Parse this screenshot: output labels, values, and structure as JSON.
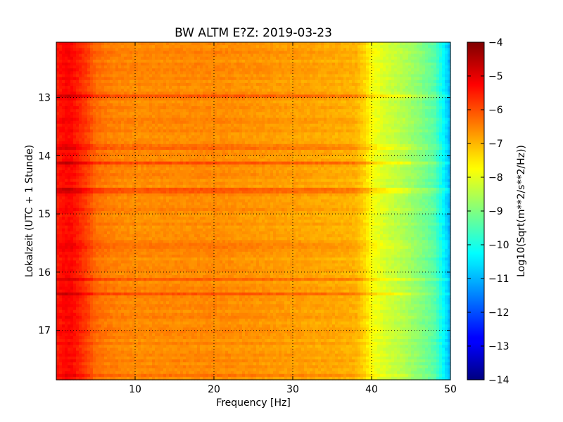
{
  "chart_data": {
    "type": "heatmap",
    "title": "BW ALTM E?Z: 2019-03-23",
    "xlabel": "Frequency [Hz]",
    "ylabel": "Lokalzeit (UTC + 1 Stunde)",
    "xlim": [
      0,
      50
    ],
    "ylim": [
      12.05,
      17.85
    ],
    "y_inverted": true,
    "x_ticks": [
      10,
      20,
      30,
      40,
      50
    ],
    "x_tick_labels": [
      "10",
      "20",
      "30",
      "40",
      "50"
    ],
    "y_ticks": [
      13,
      14,
      15,
      16,
      17
    ],
    "y_tick_labels": [
      "13",
      "14",
      "15",
      "16",
      "17"
    ],
    "grid": true,
    "colormap": "jet",
    "colorbar": {
      "label": "Log10(Sqrt(m**2/s**2/Hz))",
      "range": [
        -14,
        -4
      ],
      "ticks": [
        -4,
        -5,
        -6,
        -7,
        -8,
        -9,
        -10,
        -11,
        -12,
        -13,
        -14
      ],
      "tick_labels": [
        "−4",
        "−5",
        "−6",
        "−7",
        "−8",
        "−9",
        "−10",
        "−11",
        "−12",
        "−13",
        "−14"
      ]
    },
    "spectrum_profile": {
      "frequency_hz": [
        0,
        1,
        2,
        3,
        4,
        5,
        7,
        10,
        15,
        20,
        25,
        30,
        35,
        38,
        39,
        40,
        41,
        42,
        44,
        46,
        48,
        49,
        50
      ],
      "log10_amplitude": [
        -5.5,
        -5.3,
        -5.3,
        -5.6,
        -5.9,
        -6.3,
        -6.5,
        -6.6,
        -6.6,
        -6.6,
        -6.7,
        -6.8,
        -6.9,
        -7.0,
        -7.3,
        -7.8,
        -8.0,
        -8.2,
        -8.5,
        -8.9,
        -9.4,
        -10.2,
        -11.0
      ]
    },
    "bands": [
      {
        "time_hour": 12.97,
        "delta": 0.45
      },
      {
        "time_hour": 13.85,
        "delta": 0.25
      },
      {
        "time_hour": 14.12,
        "delta": 0.55
      },
      {
        "time_hour": 14.6,
        "delta": 0.5
      },
      {
        "time_hour": 15.55,
        "delta": 0.2
      },
      {
        "time_hour": 16.14,
        "delta": 0.35
      },
      {
        "time_hour": 16.38,
        "delta": 0.7
      },
      {
        "time_hour": 17.78,
        "delta": 0.4
      }
    ]
  }
}
